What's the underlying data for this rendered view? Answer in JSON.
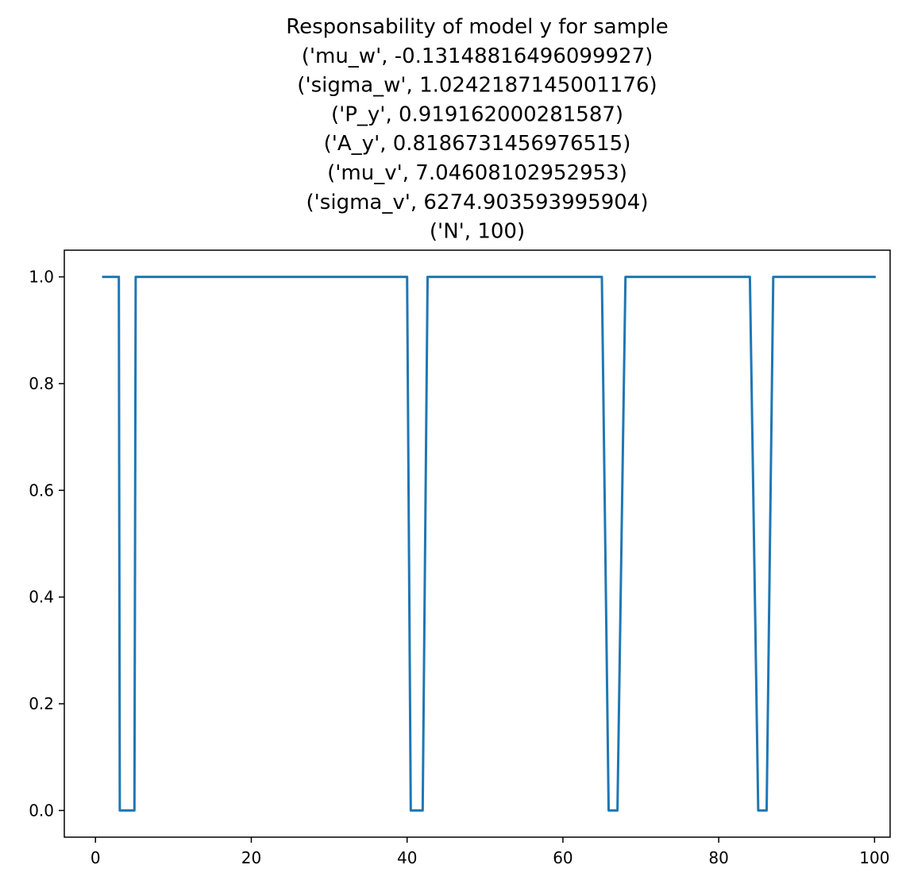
{
  "chart_data": {
    "type": "line",
    "title_lines": [
      "Responsability of model y for sample",
      "('mu_w', -0.13148816496099927)",
      "('sigma_w', 1.0242187145001176)",
      "('P_y', 0.919162000281587)",
      "('A_y', 0.8186731456976515)",
      "('mu_v', 7.04608102952953)",
      "('sigma_v', 6274.903593995904)",
      "('N', 100)"
    ],
    "xlabel": "",
    "ylabel": "",
    "xlim": [
      -4,
      102
    ],
    "ylim": [
      -0.05,
      1.05
    ],
    "xticks": [
      0,
      20,
      40,
      60,
      80,
      100
    ],
    "xtick_labels": [
      "0",
      "20",
      "40",
      "60",
      "80",
      "100"
    ],
    "yticks": [
      0.0,
      0.2,
      0.4,
      0.6,
      0.8,
      1.0
    ],
    "ytick_labels": [
      "0.0",
      "0.2",
      "0.4",
      "0.6",
      "0.8",
      "1.0"
    ],
    "grid": false,
    "color": "#1f77b4",
    "series": [
      {
        "x": [
          1,
          2,
          2.04,
          3,
          3.12,
          4,
          4.08,
          5,
          5.16,
          6,
          7,
          8,
          9,
          10,
          11,
          12,
          13,
          14,
          15,
          16,
          17,
          18,
          19,
          20,
          21,
          22,
          23,
          24,
          25,
          26,
          27,
          28,
          29,
          30,
          31,
          32,
          33,
          34,
          35,
          36,
          37,
          38,
          39,
          39.39,
          40,
          40.47,
          41,
          41.55,
          42,
          42.63,
          43,
          44,
          45,
          46,
          47,
          48,
          49,
          50,
          51,
          52,
          53,
          54,
          55,
          56,
          57,
          58,
          59,
          60,
          61,
          62,
          63,
          64,
          64.79,
          65,
          65.87,
          66,
          66.95,
          67,
          68.03,
          69,
          70,
          71,
          72,
          73,
          74,
          75,
          76,
          77,
          78,
          79,
          80,
          81,
          82,
          83,
          83.99,
          84,
          85.07,
          86,
          86.15,
          87,
          88,
          89,
          90,
          91,
          92,
          93,
          94,
          95,
          96,
          97,
          98,
          99,
          100
        ],
        "y": [
          1,
          1,
          1,
          1,
          0,
          0,
          0,
          0,
          1,
          1,
          1,
          1,
          1,
          1,
          1,
          1,
          1,
          1,
          1,
          1,
          1,
          1,
          1,
          1,
          1,
          1,
          1,
          1,
          1,
          1,
          1,
          1,
          1,
          1,
          1,
          1,
          1,
          1,
          1,
          1,
          1,
          1,
          1,
          1,
          1,
          0,
          0,
          0,
          0,
          1,
          1,
          1,
          1,
          1,
          1,
          1,
          1,
          1,
          1,
          1,
          1,
          1,
          1,
          1,
          1,
          1,
          1,
          1,
          1,
          1,
          1,
          1,
          1,
          1,
          0,
          0,
          0,
          0,
          1,
          1,
          1,
          1,
          1,
          1,
          1,
          1,
          1,
          1,
          1,
          1,
          1,
          1,
          1,
          1,
          1,
          1,
          0,
          0,
          0,
          1,
          1,
          1,
          1,
          1,
          1,
          1,
          1,
          1,
          1,
          1,
          1,
          1,
          1
        ]
      }
    ]
  }
}
